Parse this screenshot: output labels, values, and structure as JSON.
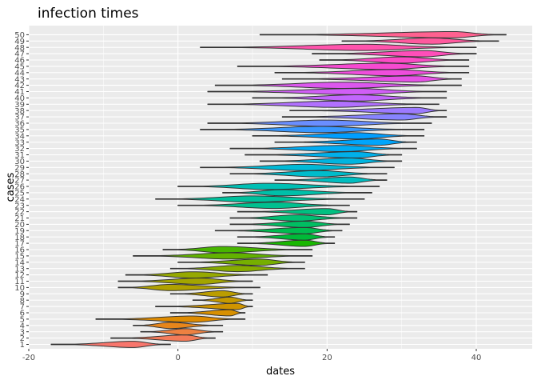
{
  "chart_data": {
    "type": "violin",
    "title": "infection times",
    "xlabel": "dates",
    "ylabel": "cases",
    "xlim": [
      -20,
      47.5
    ],
    "xticks": [
      -20,
      0,
      20,
      40
    ],
    "grid": true,
    "legend": "none",
    "panel_background": "#ebebeb",
    "grid_color": "#ffffff",
    "cases": [
      {
        "case": 1,
        "min": -17,
        "max": -1,
        "mode": -6,
        "color": "#F8766D"
      },
      {
        "case": 2,
        "min": -9,
        "max": 5,
        "mode": 1,
        "color": "#F37B59"
      },
      {
        "case": 3,
        "min": -5,
        "max": 6,
        "mode": 1,
        "color": "#ED8141"
      },
      {
        "case": 4,
        "min": -6,
        "max": 6,
        "mode": -1,
        "color": "#E7861B"
      },
      {
        "case": 5,
        "min": -11,
        "max": 9,
        "mode": 2,
        "color": "#DF8B00"
      },
      {
        "case": 6,
        "min": -1,
        "max": 9,
        "mode": 7,
        "color": "#D89000"
      },
      {
        "case": 7,
        "min": -3,
        "max": 10,
        "mode": 8,
        "color": "#CF9400"
      },
      {
        "case": 8,
        "min": 2,
        "max": 10,
        "mode": 7,
        "color": "#C59900"
      },
      {
        "case": 9,
        "min": -1,
        "max": 10,
        "mode": 6,
        "color": "#BB9D00"
      },
      {
        "case": 10,
        "min": -8,
        "max": 11,
        "mode": -1,
        "color": "#B0A100"
      },
      {
        "case": 11,
        "min": -8,
        "max": 10,
        "mode": 3,
        "color": "#A3A500"
      },
      {
        "case": 12,
        "min": -7,
        "max": 12,
        "mode": 2,
        "color": "#96A900"
      },
      {
        "case": 13,
        "min": -1,
        "max": 17,
        "mode": 8,
        "color": "#87AC00"
      },
      {
        "case": 14,
        "min": 0,
        "max": 17,
        "mode": 11,
        "color": "#76AF00"
      },
      {
        "case": 15,
        "min": -6,
        "max": 18,
        "mode": 7,
        "color": "#62B200"
      },
      {
        "case": 16,
        "min": -2,
        "max": 18,
        "mode": 6,
        "color": "#48B500"
      },
      {
        "case": 17,
        "min": 8,
        "max": 21,
        "mode": 17,
        "color": "#19B700"
      },
      {
        "case": 18,
        "min": 8,
        "max": 21,
        "mode": 17,
        "color": "#00BA38"
      },
      {
        "case": 19,
        "min": 5,
        "max": 22,
        "mode": 17,
        "color": "#00BC4F"
      },
      {
        "case": 20,
        "min": 7,
        "max": 23,
        "mode": 17,
        "color": "#00BE62"
      },
      {
        "case": 21,
        "min": 7,
        "max": 24,
        "mode": 16,
        "color": "#00BF72"
      },
      {
        "case": 22,
        "min": 8,
        "max": 24,
        "mode": 20,
        "color": "#00C081"
      },
      {
        "case": 23,
        "min": 0,
        "max": 23,
        "mode": 13,
        "color": "#00C08F"
      },
      {
        "case": 24,
        "min": -3,
        "max": 25,
        "mode": 10,
        "color": "#00C19C"
      },
      {
        "case": 25,
        "min": 6,
        "max": 26,
        "mode": 14,
        "color": "#00C0A9"
      },
      {
        "case": 26,
        "min": 0,
        "max": 27,
        "mode": 12,
        "color": "#00BFB4"
      },
      {
        "case": 27,
        "min": 13,
        "max": 28,
        "mode": 23,
        "color": "#00BEC0"
      },
      {
        "case": 28,
        "min": 7,
        "max": 28,
        "mode": 19,
        "color": "#00BCCB"
      },
      {
        "case": 29,
        "min": 3,
        "max": 29,
        "mode": 17,
        "color": "#00B9D6"
      },
      {
        "case": 30,
        "min": 11,
        "max": 30,
        "mode": 23,
        "color": "#00B5E0"
      },
      {
        "case": 31,
        "min": 9,
        "max": 30,
        "mode": 24,
        "color": "#00B0EA"
      },
      {
        "case": 32,
        "min": 7,
        "max": 32,
        "mode": 22,
        "color": "#00ABF3"
      },
      {
        "case": 33,
        "min": 13,
        "max": 32,
        "mode": 27,
        "color": "#00A5FC"
      },
      {
        "case": 34,
        "min": 10,
        "max": 33,
        "mode": 24,
        "color": "#009EFF"
      },
      {
        "case": 35,
        "min": 3,
        "max": 33,
        "mode": 19,
        "color": "#3897FF"
      },
      {
        "case": 36,
        "min": 4,
        "max": 34,
        "mode": 20,
        "color": "#6A8EFF"
      },
      {
        "case": 37,
        "min": 14,
        "max": 36,
        "mode": 30,
        "color": "#8784FF"
      },
      {
        "case": 38,
        "min": 15,
        "max": 36,
        "mode": 32,
        "color": "#9D7AFF"
      },
      {
        "case": 39,
        "min": 4,
        "max": 35,
        "mode": 21,
        "color": "#B170FF"
      },
      {
        "case": 40,
        "min": 10,
        "max": 36,
        "mode": 24,
        "color": "#C266FD"
      },
      {
        "case": 41,
        "min": 4,
        "max": 36,
        "mode": 24,
        "color": "#D15EF6"
      },
      {
        "case": 42,
        "min": 5,
        "max": 38,
        "mode": 22,
        "color": "#DC57EE"
      },
      {
        "case": 43,
        "min": 14,
        "max": 38,
        "mode": 32,
        "color": "#E652E6"
      },
      {
        "case": 44,
        "min": 13,
        "max": 39,
        "mode": 29,
        "color": "#EF4DDC"
      },
      {
        "case": 45,
        "min": 8,
        "max": 39,
        "mode": 28,
        "color": "#F64AD1"
      },
      {
        "case": 46,
        "min": 19,
        "max": 39,
        "mode": 30,
        "color": "#FB4BC5"
      },
      {
        "case": 47,
        "min": 18,
        "max": 40,
        "mode": 33,
        "color": "#FE4EB9"
      },
      {
        "case": 48,
        "min": 3,
        "max": 40,
        "mode": 25,
        "color": "#FF53AC"
      },
      {
        "case": 49,
        "min": 22,
        "max": 43,
        "mode": 34,
        "color": "#FF599E"
      },
      {
        "case": 50,
        "min": 11,
        "max": 44,
        "mode": 37,
        "color": "#FF6190"
      }
    ]
  }
}
